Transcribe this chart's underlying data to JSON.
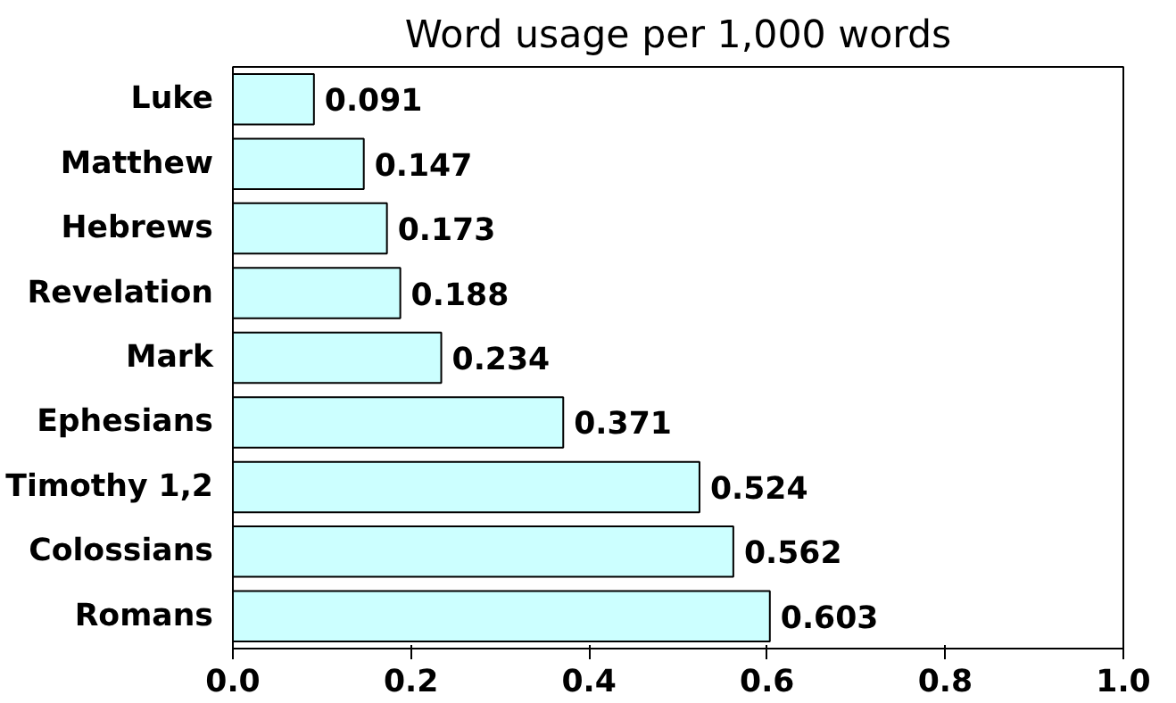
{
  "chart_data": {
    "type": "bar",
    "orientation": "horizontal",
    "title": "Word usage per 1,000 words",
    "categories": [
      "Luke",
      "Matthew",
      "Hebrews",
      "Revelation",
      "Mark",
      "Ephesians",
      "Timothy 1,2",
      "Colossians",
      "Romans"
    ],
    "values": [
      0.091,
      0.147,
      0.173,
      0.188,
      0.234,
      0.371,
      0.524,
      0.562,
      0.603
    ],
    "color": "#ccffff",
    "xlim": [
      0,
      1
    ],
    "xticks": [
      {
        "value": 0,
        "label": "0.0"
      },
      {
        "value": 0.2,
        "label": "0.2"
      },
      {
        "value": 0.4,
        "label": "0.4"
      },
      {
        "value": 0.6,
        "label": "0.6"
      },
      {
        "value": 0.8,
        "label": "0.8"
      },
      {
        "value": 1,
        "label": "1.0"
      }
    ],
    "data_labels": true,
    "grid": false
  }
}
